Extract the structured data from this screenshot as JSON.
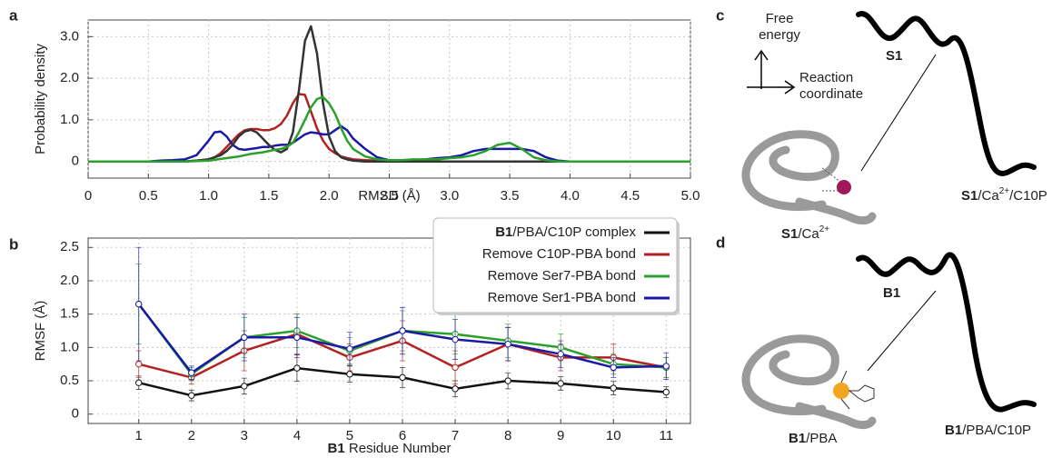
{
  "chart_data": [
    {
      "type": "line",
      "panel_label": "a",
      "xlabel": "RMSD (Å)",
      "ylabel": "Probability density",
      "grid": true,
      "xlim": [
        0,
        5
      ],
      "ylim": [
        -0.4,
        3.4
      ],
      "xticks": [
        0,
        0.5,
        {
          "value": 1,
          "label": "1.0"
        },
        1.5,
        {
          "value": 2,
          "label": "2.0"
        },
        2.5,
        {
          "value": 3,
          "label": "3.0"
        },
        3.5,
        {
          "value": 4,
          "label": "4.0"
        },
        4.5,
        {
          "value": 5,
          "label": "5.0"
        }
      ],
      "yticks": [
        0,
        {
          "value": 1,
          "label": "1.0"
        },
        {
          "value": 2,
          "label": "2.0"
        },
        {
          "value": 3,
          "label": "3.0"
        }
      ],
      "x": [
        0,
        0.5,
        0.6,
        0.7,
        0.8,
        0.9,
        1.0,
        1.05,
        1.1,
        1.15,
        1.2,
        1.25,
        1.3,
        1.35,
        1.4,
        1.45,
        1.5,
        1.55,
        1.6,
        1.65,
        1.7,
        1.75,
        1.8,
        1.85,
        1.9,
        1.95,
        2.0,
        2.05,
        2.1,
        2.15,
        2.2,
        2.3,
        2.4,
        2.5,
        2.6,
        2.7,
        2.8,
        2.9,
        3.0,
        3.1,
        3.2,
        3.3,
        3.4,
        3.5,
        3.6,
        3.7,
        3.8,
        3.9,
        4.0,
        5.0
      ],
      "series": [
        {
          "color": "#b22222",
          "values": [
            0,
            0,
            0,
            0,
            0,
            0.02,
            0.05,
            0.1,
            0.2,
            0.35,
            0.5,
            0.65,
            0.75,
            0.78,
            0.78,
            0.75,
            0.75,
            0.8,
            0.9,
            1.1,
            1.4,
            1.62,
            1.6,
            1.2,
            0.8,
            0.5,
            0.3,
            0.2,
            0.12,
            0.08,
            0.05,
            0.03,
            0.02,
            0,
            0,
            0,
            0,
            0,
            0,
            0,
            0,
            0,
            0,
            0,
            0,
            0,
            0,
            0,
            0,
            0
          ]
        },
        {
          "color": "#1a1aa6",
          "values": [
            0,
            0,
            0.02,
            0.03,
            0.05,
            0.15,
            0.5,
            0.7,
            0.72,
            0.6,
            0.4,
            0.3,
            0.28,
            0.3,
            0.32,
            0.35,
            0.35,
            0.38,
            0.4,
            0.4,
            0.45,
            0.55,
            0.65,
            0.7,
            0.68,
            0.65,
            0.65,
            0.75,
            0.85,
            0.75,
            0.55,
            0.3,
            0.1,
            0.03,
            0.02,
            0.03,
            0.05,
            0.08,
            0.1,
            0.15,
            0.25,
            0.3,
            0.3,
            0.3,
            0.3,
            0.25,
            0.1,
            0.02,
            0,
            0
          ]
        },
        {
          "color": "#333333",
          "values": [
            0,
            0,
            0,
            0,
            0,
            0.02,
            0.05,
            0.1,
            0.15,
            0.25,
            0.4,
            0.6,
            0.72,
            0.76,
            0.7,
            0.55,
            0.4,
            0.28,
            0.22,
            0.3,
            0.7,
            1.7,
            2.9,
            3.25,
            2.6,
            1.4,
            0.6,
            0.25,
            0.1,
            0.05,
            0.02,
            0,
            0,
            0,
            0,
            0,
            0,
            0,
            0,
            0,
            0,
            0,
            0,
            0,
            0,
            0,
            0,
            0,
            0,
            0
          ]
        },
        {
          "color": "#2ca02c",
          "values": [
            0,
            0,
            0,
            0,
            0,
            0.01,
            0.02,
            0.04,
            0.06,
            0.08,
            0.1,
            0.12,
            0.15,
            0.18,
            0.2,
            0.22,
            0.25,
            0.28,
            0.3,
            0.35,
            0.45,
            0.7,
            1.0,
            1.3,
            1.5,
            1.55,
            1.4,
            1.15,
            0.8,
            0.5,
            0.3,
            0.12,
            0.05,
            0.03,
            0.03,
            0.05,
            0.05,
            0.05,
            0.08,
            0.1,
            0.15,
            0.25,
            0.4,
            0.45,
            0.3,
            0.1,
            0.03,
            0,
            0,
            0
          ]
        }
      ]
    },
    {
      "type": "line",
      "panel_label": "b",
      "xlabel": [
        {
          "text": "B1",
          "bold": true
        },
        {
          "text": " Residue Number"
        }
      ],
      "ylabel": "RMSF (Å)",
      "grid": true,
      "legend": "upper-right",
      "xlim": [
        0.04,
        11.46
      ],
      "ylim": [
        -0.14,
        2.64
      ],
      "xticks": [
        1,
        2,
        3,
        4,
        5,
        6,
        7,
        8,
        9,
        10,
        11
      ],
      "yticks": [
        0,
        0.5,
        {
          "value": 1,
          "label": "1.0"
        },
        1.5,
        {
          "value": 2,
          "label": "2.0"
        },
        2.5
      ],
      "x": [
        1,
        2,
        3,
        4,
        5,
        6,
        7,
        8,
        9,
        10,
        11
      ],
      "series": [
        {
          "name": [
            {
              "text": "B1",
              "bold": true
            },
            {
              "text": "/PBA/C10P complex"
            }
          ],
          "color": "#111111",
          "values": [
            0.47,
            0.28,
            0.42,
            0.69,
            0.6,
            0.55,
            0.38,
            0.5,
            0.46,
            0.39,
            0.33
          ],
          "errors": [
            0.1,
            0.08,
            0.12,
            0.2,
            0.12,
            0.15,
            0.12,
            0.12,
            0.1,
            0.1,
            0.08
          ]
        },
        {
          "name": [
            {
              "text": "Remove C10P-PBA bond"
            }
          ],
          "color": "#b22222",
          "values": [
            0.75,
            0.55,
            0.95,
            1.2,
            0.85,
            1.1,
            0.7,
            1.05,
            0.85,
            0.85,
            0.7
          ],
          "errors": [
            0.2,
            0.1,
            0.3,
            0.3,
            0.2,
            0.3,
            0.25,
            0.25,
            0.2,
            0.2,
            0.15
          ]
        },
        {
          "name": [
            {
              "text": "Remove Ser7-PBA bond"
            }
          ],
          "color": "#2ca02c",
          "values": [
            1.65,
            0.6,
            1.15,
            1.25,
            0.95,
            1.25,
            1.2,
            1.1,
            1.0,
            0.75,
            0.7
          ],
          "errors": [
            0.6,
            0.1,
            0.3,
            0.25,
            0.2,
            0.3,
            0.3,
            0.25,
            0.2,
            0.15,
            0.15
          ]
        },
        {
          "name": [
            {
              "text": "Remove Ser1-PBA bond"
            }
          ],
          "color": "#1a1aa6",
          "values": [
            1.65,
            0.62,
            1.15,
            1.15,
            0.98,
            1.25,
            1.12,
            1.05,
            0.9,
            0.7,
            0.72
          ],
          "errors": [
            0.85,
            0.1,
            0.35,
            0.3,
            0.25,
            0.35,
            0.3,
            0.25,
            0.2,
            0.15,
            0.2
          ]
        }
      ]
    }
  ],
  "diagrams": [
    {
      "panel_label": "c",
      "energy_axis": [
        "Free",
        "energy"
      ],
      "reaction_axis": [
        "Reaction",
        "coordinate"
      ],
      "states": [
        [
          {
            "text": "S1",
            "bold": true
          }
        ],
        [
          {
            "text": "S1",
            "bold": true
          },
          {
            "text": "/Ca"
          },
          {
            "text": "2+",
            "sup": true
          },
          {
            "text": "/C10P"
          }
        ],
        [
          {
            "text": "S1",
            "bold": true
          },
          {
            "text": "/Ca"
          },
          {
            "text": "2+",
            "sup": true
          }
        ]
      ]
    },
    {
      "panel_label": "d",
      "states": [
        [
          {
            "text": "B1",
            "bold": true
          }
        ],
        [
          {
            "text": "B1",
            "bold": true
          },
          {
            "text": "/PBA/C10P"
          }
        ],
        [
          {
            "text": "B1",
            "bold": true
          },
          {
            "text": "/PBA"
          }
        ]
      ]
    }
  ]
}
